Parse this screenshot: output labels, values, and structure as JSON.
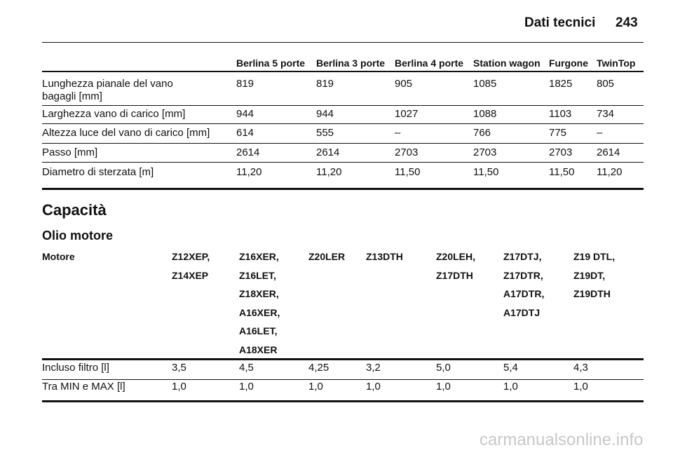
{
  "header": {
    "title": "Dati tecnici",
    "page_number": "243"
  },
  "table1": {
    "columns": [
      "Berlina 5 porte",
      "Berlina 3 porte",
      "Berlina 4 porte",
      "Station wagon",
      "Furgone",
      "TwinTop"
    ],
    "rows": [
      {
        "label": [
          "Lunghezza pianale del vano",
          "bagagli [mm]"
        ],
        "values": [
          "819",
          "819",
          "905",
          "1085",
          "1825",
          "805"
        ]
      },
      {
        "label": [
          "Larghezza vano di carico [mm]"
        ],
        "values": [
          "944",
          "944",
          "1027",
          "1088",
          "1103",
          "734"
        ]
      },
      {
        "label": [
          "Altezza luce del vano di carico [mm]"
        ],
        "values": [
          "614",
          "555",
          "–",
          "766",
          "775",
          "–"
        ]
      },
      {
        "label": [
          "Passo [mm]"
        ],
        "values": [
          "2614",
          "2614",
          "2703",
          "2703",
          "2703",
          "2614"
        ]
      },
      {
        "label": [
          "Diametro di sterzata [m]"
        ],
        "values": [
          "11,20",
          "11,20",
          "11,50",
          "11,50",
          "11,50",
          "11,20"
        ]
      }
    ]
  },
  "section_title": "Capacità",
  "subsection_title": "Olio motore",
  "table2": {
    "columns": [
      [
        "Motore"
      ],
      [
        "Z12XEP,",
        "Z14XEP"
      ],
      [
        "Z16XER,",
        "Z16LET,",
        "Z18XER,",
        "A16XER,",
        "A16LET,",
        "A18XER"
      ],
      [
        "Z20LER"
      ],
      [
        "Z13DTH"
      ],
      [
        "Z20LEH,",
        "Z17DTH"
      ],
      [
        "Z17DTJ,",
        "Z17DTR,",
        "A17DTR,",
        "A17DTJ"
      ],
      [
        "Z19 DTL,",
        "Z19DT,",
        "Z19DTH"
      ]
    ],
    "rows": [
      [
        "Incluso filtro [l]",
        "3,5",
        "4,5",
        "4,25",
        "3,2",
        "5,0",
        "5,4",
        "4,3"
      ],
      [
        "Tra MIN e MAX [l]",
        "1,0",
        "1,0",
        "1,0",
        "1,0",
        "1,0",
        "1,0",
        "1,0"
      ]
    ]
  },
  "watermark": "carmanualsonline.info"
}
